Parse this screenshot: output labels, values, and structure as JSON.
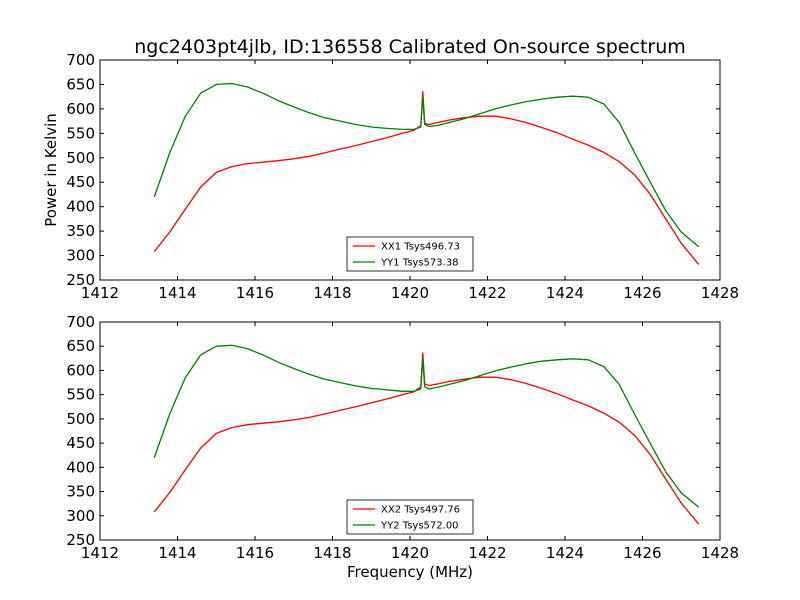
{
  "chart_data": [
    {
      "type": "line",
      "title": "ngc2403pt4jlb, ID:136558 Calibrated On-source spectrum",
      "xlabel": "",
      "ylabel": "Power in Kelvin",
      "xlim": [
        1412,
        1428
      ],
      "ylim": [
        250,
        700
      ],
      "xticks": [
        1412,
        1414,
        1416,
        1418,
        1420,
        1422,
        1424,
        1426,
        1428
      ],
      "yticks": [
        250,
        300,
        350,
        400,
        450,
        500,
        550,
        600,
        650,
        700
      ],
      "legend_position": "lower-center",
      "series": [
        {
          "name": "XX1 Tsys496.73",
          "color": "#ff0000",
          "x": [
            1413.4,
            1413.8,
            1414.2,
            1414.6,
            1415.0,
            1415.4,
            1415.8,
            1416.2,
            1416.6,
            1417.0,
            1417.4,
            1417.8,
            1418.2,
            1418.6,
            1419.0,
            1419.4,
            1419.8,
            1420.1,
            1420.28,
            1420.33,
            1420.38,
            1420.5,
            1420.7,
            1421.0,
            1421.4,
            1421.8,
            1422.2,
            1422.6,
            1423.0,
            1423.4,
            1423.8,
            1424.2,
            1424.6,
            1425.0,
            1425.4,
            1425.8,
            1426.2,
            1426.6,
            1427.0,
            1427.45
          ],
          "values": [
            308,
            348,
            395,
            440,
            470,
            482,
            488,
            491,
            494,
            498,
            503,
            510,
            518,
            525,
            533,
            541,
            550,
            556,
            566,
            635,
            570,
            568,
            572,
            577,
            582,
            585,
            585,
            580,
            572,
            562,
            551,
            538,
            526,
            511,
            492,
            465,
            425,
            375,
            325,
            282
          ]
        },
        {
          "name": "YY1 Tsys573.38",
          "color": "#008000",
          "x": [
            1413.4,
            1413.8,
            1414.2,
            1414.6,
            1415.0,
            1415.4,
            1415.8,
            1416.2,
            1416.6,
            1417.0,
            1417.4,
            1417.8,
            1418.2,
            1418.6,
            1419.0,
            1419.4,
            1419.8,
            1420.1,
            1420.28,
            1420.33,
            1420.38,
            1420.5,
            1420.7,
            1421.0,
            1421.4,
            1421.8,
            1422.2,
            1422.6,
            1423.0,
            1423.4,
            1423.8,
            1424.2,
            1424.6,
            1425.0,
            1425.4,
            1425.8,
            1426.2,
            1426.6,
            1427.0,
            1427.45
          ],
          "values": [
            420,
            510,
            585,
            632,
            650,
            652,
            645,
            632,
            617,
            604,
            592,
            582,
            575,
            568,
            563,
            560,
            558,
            558,
            563,
            625,
            568,
            564,
            566,
            572,
            580,
            590,
            600,
            608,
            615,
            620,
            624,
            626,
            624,
            610,
            572,
            510,
            450,
            392,
            348,
            318
          ]
        }
      ]
    },
    {
      "type": "line",
      "title": "",
      "xlabel": "Frequency (MHz)",
      "ylabel": "",
      "xlim": [
        1412,
        1428
      ],
      "ylim": [
        250,
        700
      ],
      "xticks": [
        1412,
        1414,
        1416,
        1418,
        1420,
        1422,
        1424,
        1426,
        1428
      ],
      "yticks": [
        250,
        300,
        350,
        400,
        450,
        500,
        550,
        600,
        650,
        700
      ],
      "legend_position": "lower-center",
      "series": [
        {
          "name": "XX2 Tsys497.76",
          "color": "#ff0000",
          "x": [
            1413.4,
            1413.8,
            1414.2,
            1414.6,
            1415.0,
            1415.4,
            1415.8,
            1416.2,
            1416.6,
            1417.0,
            1417.4,
            1417.8,
            1418.2,
            1418.6,
            1419.0,
            1419.4,
            1419.8,
            1420.1,
            1420.28,
            1420.33,
            1420.38,
            1420.5,
            1420.7,
            1421.0,
            1421.4,
            1421.8,
            1422.2,
            1422.6,
            1423.0,
            1423.4,
            1423.8,
            1424.2,
            1424.6,
            1425.0,
            1425.4,
            1425.8,
            1426.2,
            1426.6,
            1427.0,
            1427.45
          ],
          "values": [
            308,
            348,
            395,
            440,
            470,
            482,
            488,
            491,
            494,
            498,
            503,
            510,
            518,
            525,
            533,
            541,
            550,
            556,
            566,
            636,
            572,
            569,
            572,
            577,
            582,
            586,
            586,
            581,
            573,
            563,
            552,
            539,
            527,
            512,
            493,
            466,
            426,
            376,
            326,
            283
          ]
        },
        {
          "name": "YY2 Tsys572.00",
          "color": "#008000",
          "x": [
            1413.4,
            1413.8,
            1414.2,
            1414.6,
            1415.0,
            1415.4,
            1415.8,
            1416.2,
            1416.6,
            1417.0,
            1417.4,
            1417.8,
            1418.2,
            1418.6,
            1419.0,
            1419.4,
            1419.8,
            1420.1,
            1420.28,
            1420.33,
            1420.38,
            1420.5,
            1420.7,
            1421.0,
            1421.4,
            1421.8,
            1422.2,
            1422.6,
            1423.0,
            1423.4,
            1423.8,
            1424.2,
            1424.6,
            1425.0,
            1425.4,
            1425.8,
            1426.2,
            1426.6,
            1427.0,
            1427.45
          ],
          "values": [
            420,
            510,
            585,
            632,
            650,
            652,
            645,
            632,
            617,
            604,
            592,
            582,
            575,
            568,
            563,
            560,
            557,
            557,
            562,
            624,
            566,
            562,
            565,
            571,
            579,
            589,
            599,
            607,
            614,
            619,
            622,
            624,
            622,
            608,
            571,
            509,
            449,
            391,
            347,
            318
          ]
        }
      ]
    }
  ]
}
